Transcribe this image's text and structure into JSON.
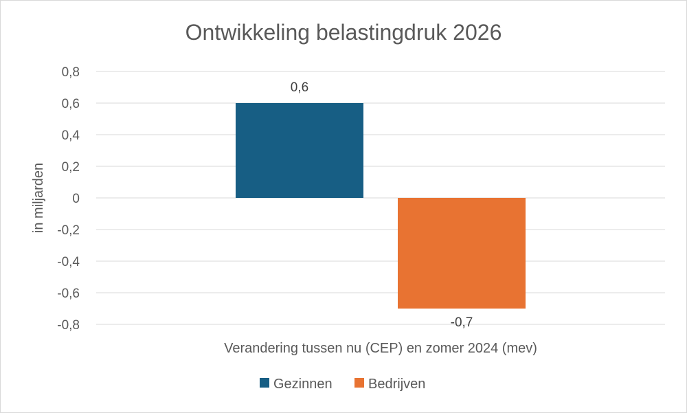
{
  "chart_data": {
    "type": "bar",
    "title": "Ontwikkeling belastingdruk 2026",
    "ylabel": "in miljarden",
    "categories": [
      "Verandering tussen nu (CEP) en zomer 2024 (mev)"
    ],
    "series": [
      {
        "name": "Gezinnen",
        "values": [
          0.6
        ],
        "color": "#175e84",
        "label": "0,6"
      },
      {
        "name": "Bedrijven",
        "values": [
          -0.7
        ],
        "color": "#e87332",
        "label": "-0,7"
      }
    ],
    "ylim": [
      -0.8,
      0.8
    ],
    "yticks": [
      {
        "value": 0.8,
        "label": "0,8"
      },
      {
        "value": 0.6,
        "label": "0,6"
      },
      {
        "value": 0.4,
        "label": "0,4"
      },
      {
        "value": 0.2,
        "label": "0,2"
      },
      {
        "value": 0,
        "label": "0"
      },
      {
        "value": -0.2,
        "label": "-0,2"
      },
      {
        "value": -0.4,
        "label": "-0,4"
      },
      {
        "value": -0.6,
        "label": "-0,6"
      },
      {
        "value": -0.8,
        "label": "-0,8"
      }
    ],
    "grid": true,
    "legend": "bottom"
  }
}
